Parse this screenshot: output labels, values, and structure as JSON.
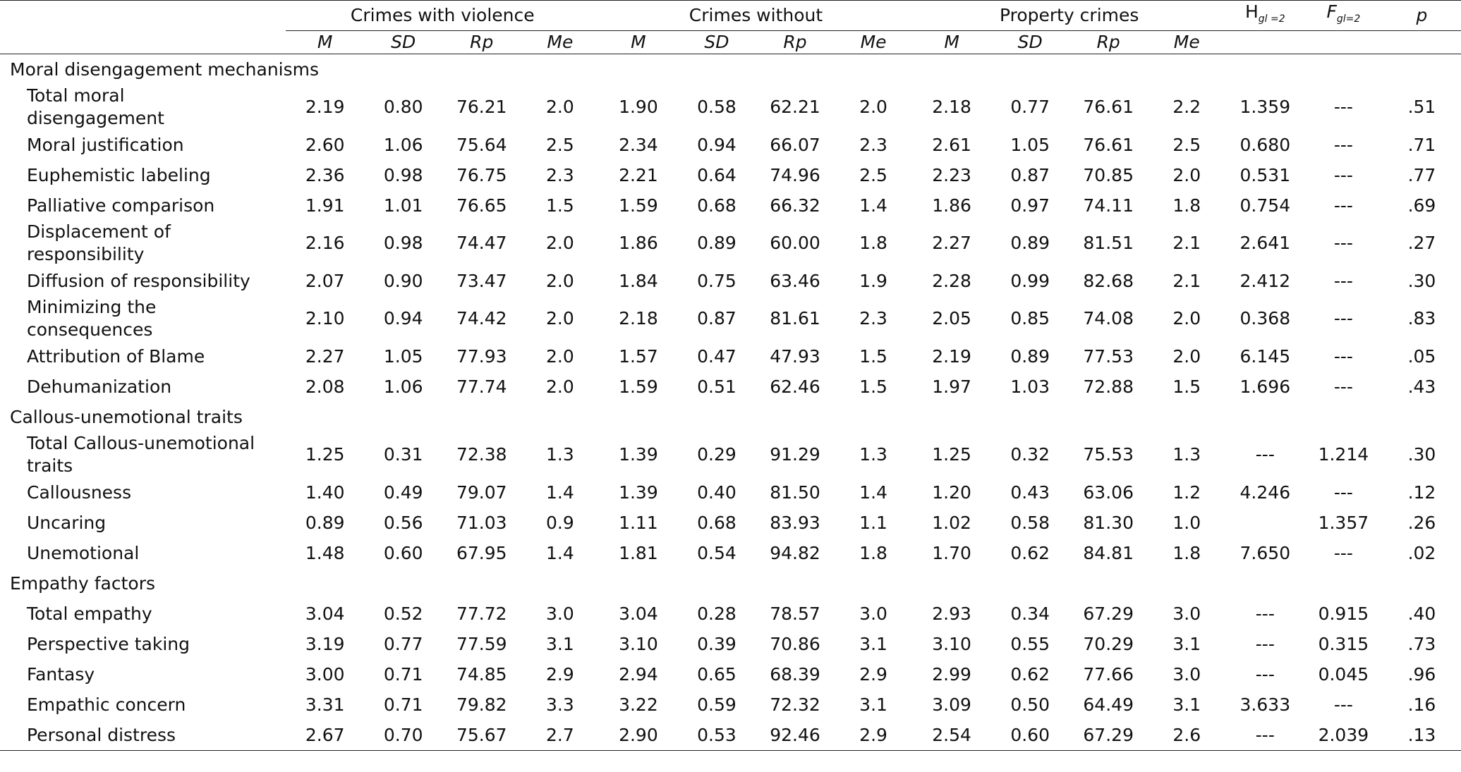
{
  "table": {
    "groups": [
      "Crimes with violence",
      "Crimes without",
      "Property crimes"
    ],
    "stats": [
      {
        "main": "H",
        "sub": "gl =2"
      },
      {
        "main": "F",
        "sub": "gl=2"
      },
      {
        "main": "p"
      }
    ],
    "subheaders": [
      "M",
      "SD",
      "Rp",
      "Me",
      "M",
      "SD",
      "Rp",
      "Me",
      "M",
      "SD",
      "Rp",
      "Me"
    ],
    "sections": [
      {
        "title": "Moral disengagement mechanisms",
        "rows": [
          {
            "label": "Total moral disengagement",
            "cells": [
              "2.19",
              "0.80",
              "76.21",
              "2.0",
              "1.90",
              "0.58",
              "62.21",
              "2.0",
              "2.18",
              "0.77",
              "76.61",
              "2.2",
              "1.359",
              "---",
              ".51"
            ]
          },
          {
            "label": "Moral justification",
            "cells": [
              "2.60",
              "1.06",
              "75.64",
              "2.5",
              "2.34",
              "0.94",
              "66.07",
              "2.3",
              "2.61",
              "1.05",
              "76.61",
              "2.5",
              "0.680",
              "---",
              ".71"
            ]
          },
          {
            "label": "Euphemistic labeling",
            "cells": [
              "2.36",
              "0.98",
              "76.75",
              "2.3",
              "2.21",
              "0.64",
              "74.96",
              "2.5",
              "2.23",
              "0.87",
              "70.85",
              "2.0",
              "0.531",
              "---",
              ".77"
            ]
          },
          {
            "label": "Palliative comparison",
            "cells": [
              "1.91",
              "1.01",
              "76.65",
              "1.5",
              "1.59",
              "0.68",
              "66.32",
              "1.4",
              "1.86",
              "0.97",
              "74.11",
              "1.8",
              "0.754",
              "---",
              ".69"
            ]
          },
          {
            "label": "Displacement of responsibility",
            "cells": [
              "2.16",
              "0.98",
              "74.47",
              "2.0",
              "1.86",
              "0.89",
              "60.00",
              "1.8",
              "2.27",
              "0.89",
              "81.51",
              "2.1",
              "2.641",
              "---",
              ".27"
            ]
          },
          {
            "label": "Diffusion of responsibility",
            "cells": [
              "2.07",
              "0.90",
              "73.47",
              "2.0",
              "1.84",
              "0.75",
              "63.46",
              "1.9",
              "2.28",
              "0.99",
              "82.68",
              "2.1",
              "2.412",
              "---",
              ".30"
            ]
          },
          {
            "label": "Minimizing the consequences",
            "cells": [
              "2.10",
              "0.94",
              "74.42",
              "2.0",
              "2.18",
              "0.87",
              "81.61",
              "2.3",
              "2.05",
              "0.85",
              "74.08",
              "2.0",
              "0.368",
              "---",
              ".83"
            ]
          },
          {
            "label": "Attribution of Blame",
            "cells": [
              "2.27",
              "1.05",
              "77.93",
              "2.0",
              "1.57",
              "0.47",
              "47.93",
              "1.5",
              "2.19",
              "0.89",
              "77.53",
              "2.0",
              "6.145",
              "---",
              ".05"
            ]
          },
          {
            "label": "Dehumanization",
            "cells": [
              "2.08",
              "1.06",
              "77.74",
              "2.0",
              "1.59",
              "0.51",
              "62.46",
              "1.5",
              "1.97",
              "1.03",
              "72.88",
              "1.5",
              "1.696",
              "---",
              ".43"
            ]
          }
        ]
      },
      {
        "title": "Callous-unemotional traits",
        "rows": [
          {
            "label": "Total Callous-unemotional traits",
            "cells": [
              "1.25",
              "0.31",
              "72.38",
              "1.3",
              "1.39",
              "0.29",
              "91.29",
              "1.3",
              "1.25",
              "0.32",
              "75.53",
              "1.3",
              "---",
              "1.214",
              ".30"
            ]
          },
          {
            "label": "Callousness",
            "cells": [
              "1.40",
              "0.49",
              "79.07",
              "1.4",
              "1.39",
              "0.40",
              "81.50",
              "1.4",
              "1.20",
              "0.43",
              "63.06",
              "1.2",
              "4.246",
              "---",
              ".12"
            ]
          },
          {
            "label": "Uncaring",
            "cells": [
              "0.89",
              "0.56",
              "71.03",
              "0.9",
              "1.11",
              "0.68",
              "83.93",
              "1.1",
              "1.02",
              "0.58",
              "81.30",
              "1.0",
              null,
              "1.357",
              ".26"
            ]
          },
          {
            "label": "Unemotional",
            "cells": [
              "1.48",
              "0.60",
              "67.95",
              "1.4",
              "1.81",
              "0.54",
              "94.82",
              "1.8",
              "1.70",
              "0.62",
              "84.81",
              "1.8",
              "7.650",
              "---",
              ".02"
            ]
          }
        ]
      },
      {
        "title": "Empathy factors",
        "rows": [
          {
            "label": "Total empathy",
            "cells": [
              "3.04",
              "0.52",
              "77.72",
              "3.0",
              "3.04",
              "0.28",
              "78.57",
              "3.0",
              "2.93",
              "0.34",
              "67.29",
              "3.0",
              "---",
              "0.915",
              ".40"
            ]
          },
          {
            "label": "Perspective taking",
            "cells": [
              "3.19",
              "0.77",
              "77.59",
              "3.1",
              "3.10",
              "0.39",
              "70.86",
              "3.1",
              "3.10",
              "0.55",
              "70.29",
              "3.1",
              "---",
              "0.315",
              ".73"
            ]
          },
          {
            "label": "Fantasy",
            "cells": [
              "3.00",
              "0.71",
              "74.85",
              "2.9",
              "2.94",
              "0.65",
              "68.39",
              "2.9",
              "2.99",
              "0.62",
              "77.66",
              "3.0",
              "---",
              "0.045",
              ".96"
            ]
          },
          {
            "label": "Empathic concern",
            "cells": [
              "3.31",
              "0.71",
              "79.82",
              "3.3",
              "3.22",
              "0.59",
              "72.32",
              "3.1",
              "3.09",
              "0.50",
              "64.49",
              "3.1",
              "3.633",
              "---",
              ".16"
            ]
          },
          {
            "label": "Personal distress",
            "cells": [
              "2.67",
              "0.70",
              "75.67",
              "2.7",
              "2.90",
              "0.53",
              "92.46",
              "2.9",
              "2.54",
              "0.60",
              "67.29",
              "2.6",
              "---",
              "2.039",
              ".13"
            ]
          }
        ]
      }
    ]
  }
}
